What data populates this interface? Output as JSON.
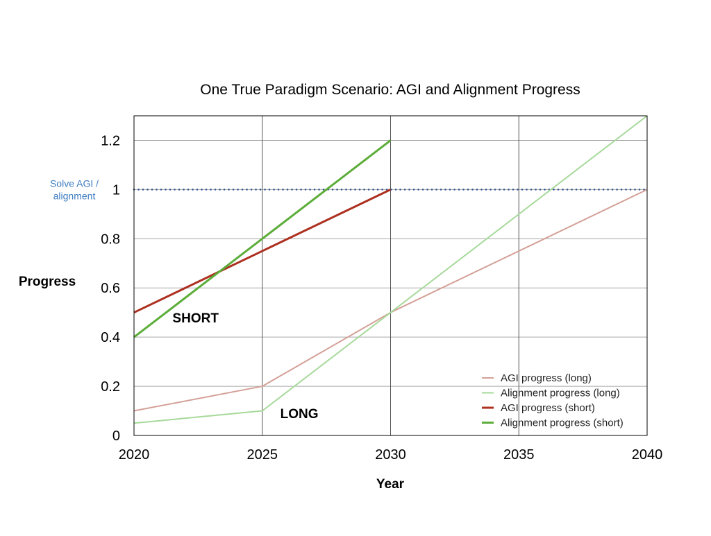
{
  "chart_data": {
    "type": "line",
    "title": "One True Paradigm Scenario: AGI and Alignment Progress",
    "xlabel": "Year",
    "ylabel": "Progress",
    "xlim": [
      2020,
      2040
    ],
    "ylim": [
      0,
      1.3
    ],
    "x_ticks": [
      2020,
      2025,
      2030,
      2035,
      2040
    ],
    "y_ticks": [
      0,
      0.2,
      0.4,
      0.6,
      0.8,
      1,
      1.2
    ],
    "x_tick_labels": [
      "2020",
      "2025",
      "2030",
      "2035",
      "2040"
    ],
    "y_tick_labels": [
      "0",
      "0.2",
      "0.4",
      "0.6",
      "0.8",
      "1",
      "1.2"
    ],
    "grid": true,
    "legend_position": "bottom-right",
    "series": [
      {
        "name": "AGI progress (long)",
        "color": "#d4a097",
        "weight": "thin",
        "x": [
          2020,
          2025,
          2030,
          2040
        ],
        "y": [
          0.1,
          0.2,
          0.5,
          1.0
        ]
      },
      {
        "name": "Alignment progress (long)",
        "color": "#a6d99a",
        "weight": "thin",
        "x": [
          2020,
          2025,
          2030,
          2040
        ],
        "y": [
          0.05,
          0.1,
          0.5,
          1.3
        ]
      },
      {
        "name": "AGI progress (short)",
        "color": "#ad3020",
        "weight": "thick",
        "x": [
          2020,
          2030
        ],
        "y": [
          0.5,
          1.0
        ]
      },
      {
        "name": "Alignment progress (short)",
        "color": "#5cad3a",
        "weight": "thick",
        "x": [
          2020,
          2030
        ],
        "y": [
          0.4,
          1.2
        ]
      }
    ],
    "threshold": {
      "y": 1,
      "color": "#2c4f8a",
      "style": "dotted",
      "label_line1": "Solve AGI /",
      "label_line2": "alignment",
      "label_color": "#3d7cc0"
    },
    "annotations": [
      {
        "text": "SHORT",
        "x": 2021.5,
        "y": 0.46
      },
      {
        "text": "LONG",
        "x": 2025.7,
        "y": 0.07
      }
    ]
  }
}
